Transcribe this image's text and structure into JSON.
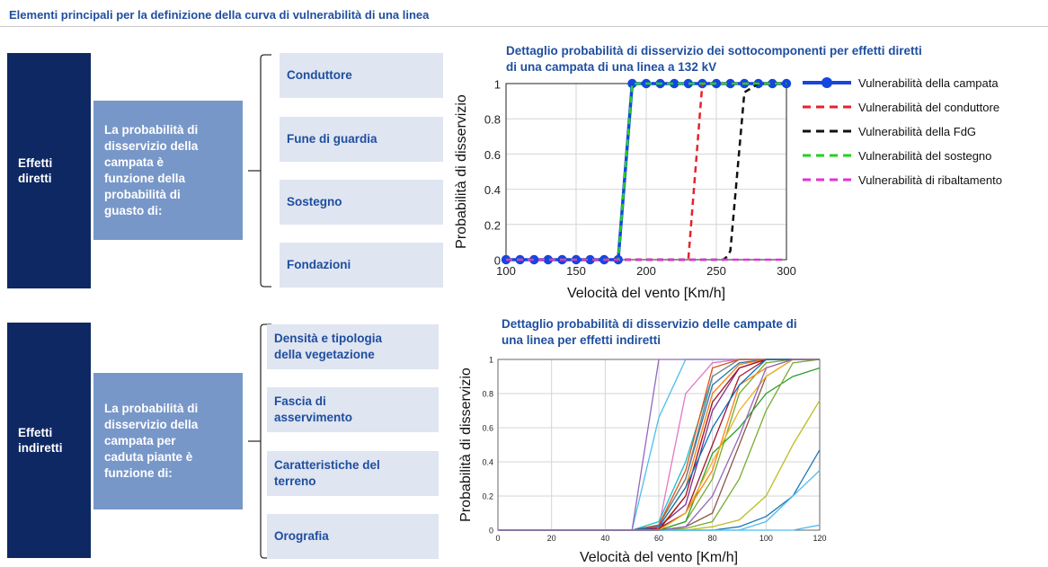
{
  "page": {
    "title": "Elementi principali per la definizione della curva di vulnerabilità di una linea"
  },
  "direct": {
    "label": "Effetti\ndiretti",
    "description": "La probabilità di\ndisservizio della\ncampata è\nfunzione della\nprobabilità di\nguasto di:",
    "items": [
      "Conduttore",
      "Fune di guardia",
      "Sostegno",
      "Fondazioni"
    ]
  },
  "indirect": {
    "label": "Effetti\nindiretti",
    "description": "La probabilità di\ndisservizio della\ncampata per\ncaduta piante è\nfunzione di:",
    "items": [
      "Densità e tipologia\ndella vegetazione",
      "Fascia di\nasservimento",
      "Caratteristiche del\nterreno",
      "Orografia"
    ]
  },
  "chart_data": [
    {
      "type": "line",
      "title": "Dettaglio probabilità di disservizio dei sottocomponenti per effetti diretti\ndi una campata di una linea a 132 kV",
      "xlabel": "Velocità del vento [Km/h]",
      "ylabel": "Probabilità di disservizio",
      "xlim": [
        100,
        300
      ],
      "ylim": [
        0,
        1
      ],
      "xticks": [
        100,
        150,
        200,
        250,
        300
      ],
      "yticks": [
        0,
        0.2,
        0.4,
        0.6,
        0.8,
        1
      ],
      "ytick_labels": [
        "0",
        "0.2",
        "0.4",
        "0.6",
        "0.8",
        "1"
      ],
      "grid": true,
      "legend_position": "right",
      "series": [
        {
          "name": "Vulnerabilità della campata",
          "color": "#1446e0",
          "style": "solid-markers",
          "x": [
            100,
            110,
            120,
            130,
            140,
            150,
            160,
            170,
            180,
            190,
            200,
            210,
            220,
            230,
            240,
            250,
            260,
            270,
            280,
            290,
            300
          ],
          "y": [
            0,
            0,
            0,
            0,
            0,
            0,
            0,
            0,
            0,
            1,
            1,
            1,
            1,
            1,
            1,
            1,
            1,
            1,
            1,
            1,
            1
          ]
        },
        {
          "name": "Vulnerabilità del conduttore",
          "color": "#e8212b",
          "style": "dashed",
          "x": [
            100,
            230,
            240,
            250,
            300
          ],
          "y": [
            0,
            0,
            1,
            1,
            1
          ]
        },
        {
          "name": "Vulnerabilità della FdG",
          "color": "#111111",
          "style": "dashed",
          "x": [
            100,
            255,
            258,
            260,
            265,
            270,
            280,
            300
          ],
          "y": [
            0,
            0,
            0.02,
            0.05,
            0.5,
            0.95,
            1,
            1
          ]
        },
        {
          "name": "Vulnerabilità del sostegno",
          "color": "#22d21e",
          "style": "dashed",
          "x": [
            100,
            180,
            190,
            300
          ],
          "y": [
            0,
            0,
            1,
            1
          ]
        },
        {
          "name": "Vulnerabilità di ribaltamento",
          "color": "#e233d6",
          "style": "dashed",
          "x": [
            100,
            300
          ],
          "y": [
            0,
            0
          ]
        }
      ]
    },
    {
      "type": "line",
      "title": "Dettaglio probabilità di disservizio delle campate di\nuna linea per effetti indiretti",
      "xlabel": "Velocità del vento [Km/h]",
      "ylabel": "Probabilità di disservizio",
      "xlim": [
        0,
        120
      ],
      "ylim": [
        0,
        1
      ],
      "xticks": [
        0,
        20,
        40,
        60,
        80,
        100,
        120
      ],
      "yticks": [
        0,
        0.2,
        0.4,
        0.6,
        0.8,
        1
      ],
      "ytick_labels": [
        "0",
        "0.2",
        "0.4",
        "0.6",
        "0.8",
        "1"
      ],
      "grid": true,
      "x": [
        0,
        10,
        20,
        30,
        40,
        50,
        60,
        70,
        80,
        90,
        100,
        110,
        120
      ],
      "series": [
        {
          "color": "#1f77b4",
          "values": [
            0,
            0,
            0,
            0,
            0,
            0,
            0.03,
            0.3,
            0.85,
            0.98,
            1,
            1,
            1
          ]
        },
        {
          "color": "#ff7f0e",
          "values": [
            0,
            0,
            0,
            0,
            0,
            0,
            0.02,
            0.25,
            0.8,
            0.97,
            1,
            1,
            1
          ]
        },
        {
          "color": "#d4a017",
          "values": [
            0,
            0,
            0,
            0,
            0,
            0,
            0.01,
            0.2,
            0.75,
            0.95,
            1,
            1,
            1
          ]
        },
        {
          "color": "#7e2f8e",
          "values": [
            0,
            0,
            0,
            0,
            0,
            0,
            0.02,
            0.15,
            0.7,
            0.95,
            1,
            1,
            1
          ]
        },
        {
          "color": "#77ac30",
          "values": [
            0,
            0,
            0,
            0,
            0,
            0,
            0,
            0.05,
            0.3,
            0.8,
            0.98,
            1,
            1
          ]
        },
        {
          "color": "#4dbeee",
          "values": [
            0,
            0,
            0,
            0,
            0,
            0,
            0.66,
            1,
            1,
            1,
            1,
            1,
            1
          ]
        },
        {
          "color": "#a2142f",
          "values": [
            0,
            0,
            0,
            0,
            0,
            0,
            0.01,
            0.1,
            0.5,
            0.9,
            1,
            1,
            1
          ]
        },
        {
          "color": "#9467bd",
          "values": [
            0,
            0,
            0,
            0,
            0,
            0,
            1,
            1,
            1,
            1,
            1,
            1,
            1
          ]
        },
        {
          "color": "#8c564b",
          "values": [
            0,
            0,
            0,
            0,
            0,
            0,
            0,
            0.02,
            0.1,
            0.5,
            0.9,
            1,
            1
          ]
        },
        {
          "color": "#e377c2",
          "values": [
            0,
            0,
            0,
            0,
            0,
            0,
            0.02,
            0.8,
            0.98,
            1,
            1,
            1,
            1
          ]
        },
        {
          "color": "#17becf",
          "values": [
            0,
            0,
            0,
            0,
            0,
            0,
            0.05,
            0.4,
            0.9,
            1,
            1,
            1,
            1
          ]
        },
        {
          "color": "#2ca02c",
          "values": [
            0,
            0,
            0,
            0,
            0,
            0,
            0,
            0.05,
            0.45,
            0.6,
            0.8,
            0.9,
            0.95
          ]
        },
        {
          "color": "#bcbd22",
          "values": [
            0,
            0,
            0,
            0,
            0,
            0,
            0,
            0,
            0.02,
            0.06,
            0.2,
            0.5,
            0.76
          ]
        },
        {
          "color": "#1f77b4",
          "values": [
            0,
            0,
            0,
            0,
            0,
            0,
            0,
            0,
            0,
            0.02,
            0.08,
            0.2,
            0.47
          ]
        },
        {
          "color": "#4dbeee",
          "values": [
            0,
            0,
            0,
            0,
            0,
            0,
            0,
            0,
            0,
            0,
            0.05,
            0.2,
            0.35
          ]
        },
        {
          "color": "#ff7f0e",
          "values": [
            0,
            0,
            0,
            0,
            0,
            0,
            0,
            0.1,
            0.35,
            0.85,
            0.95,
            1,
            1
          ]
        },
        {
          "color": "#7f7f7f",
          "values": [
            0,
            0,
            0,
            0,
            0,
            0,
            0.03,
            0.3,
            0.9,
            1,
            1,
            1,
            1
          ]
        },
        {
          "color": "#a2142f",
          "values": [
            0,
            0,
            0,
            0,
            0,
            0,
            0,
            0.2,
            0.75,
            0.95,
            1,
            1,
            1
          ]
        },
        {
          "color": "#77ac30",
          "values": [
            0,
            0,
            0,
            0,
            0,
            0,
            0,
            0.01,
            0.05,
            0.3,
            0.7,
            0.98,
            1
          ]
        },
        {
          "color": "#d95319",
          "values": [
            0,
            0,
            0,
            0,
            0,
            0,
            0.03,
            0.35,
            0.95,
            1,
            1,
            1,
            1
          ]
        },
        {
          "color": "#0072bd",
          "values": [
            0,
            0,
            0,
            0,
            0,
            0,
            0.02,
            0.25,
            0.6,
            0.85,
            1,
            1,
            1
          ]
        },
        {
          "color": "#edb120",
          "values": [
            0,
            0,
            0,
            0,
            0,
            0,
            0,
            0.1,
            0.4,
            0.7,
            0.9,
            1,
            1
          ]
        },
        {
          "color": "#4dbeee",
          "values": [
            0,
            0,
            0,
            0,
            0,
            0,
            0,
            0,
            0,
            0,
            0,
            0,
            0.03
          ]
        },
        {
          "color": "#9467bd",
          "values": [
            0,
            0,
            0,
            0,
            0,
            0,
            0,
            0.02,
            0.2,
            0.55,
            0.95,
            1,
            1
          ]
        }
      ]
    }
  ]
}
